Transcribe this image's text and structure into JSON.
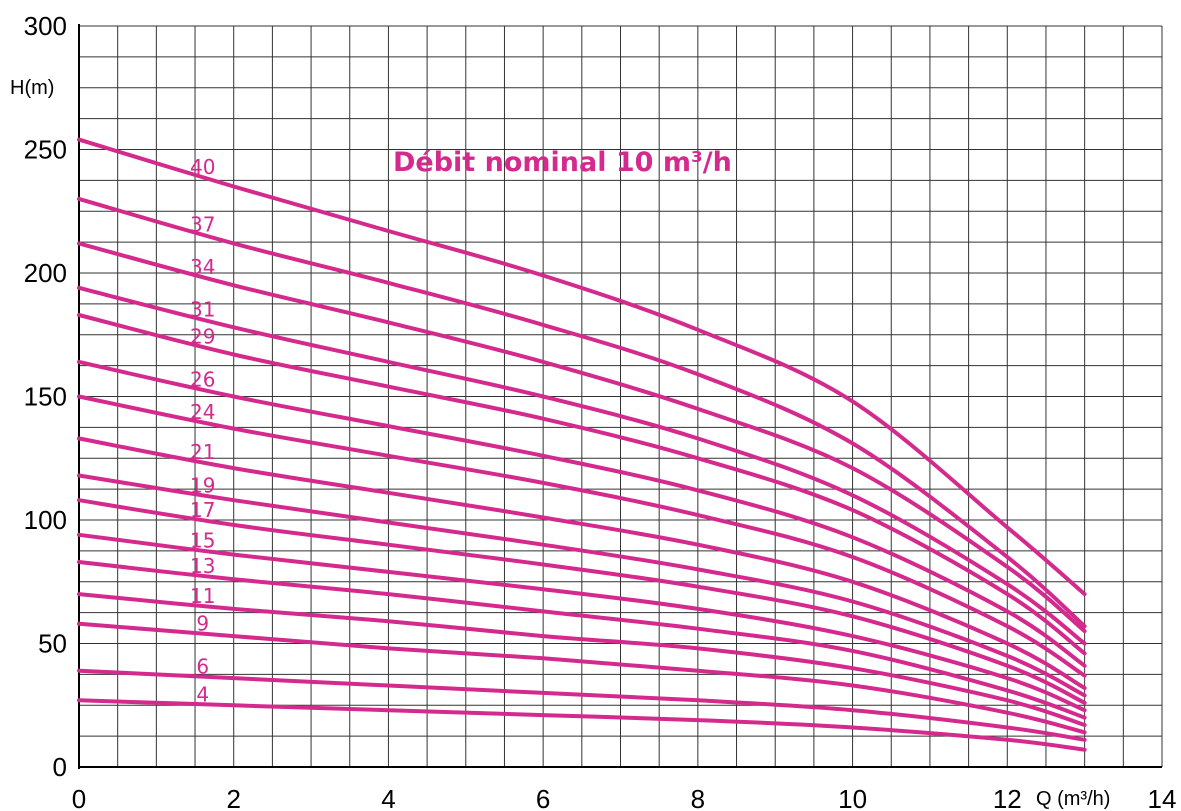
{
  "chart_data": {
    "type": "line",
    "title": "Débit nominal 10 m³/h",
    "xlabel": "Q (m³/h)",
    "ylabel": "H(m)",
    "xlim": [
      0,
      14
    ],
    "ylim": [
      0,
      300
    ],
    "x_ticks": [
      "0",
      "2",
      "4",
      "6",
      "8",
      "10",
      "12",
      "14"
    ],
    "y_ticks": [
      "0",
      "50",
      "100",
      "150",
      "200",
      "250",
      "300"
    ],
    "grid": true,
    "legend": "none (series labels printed on curves)",
    "colors": {
      "curve": "#d42a8e",
      "grid": "#333333",
      "axis": "#000000"
    },
    "x": [
      0,
      2,
      4,
      6,
      8,
      10,
      12,
      13
    ],
    "series": [
      {
        "name": "40",
        "values": [
          254,
          235,
          217,
          199,
          177,
          148,
          97,
          70
        ]
      },
      {
        "name": "37",
        "values": [
          230,
          212,
          196,
          179,
          159,
          131,
          85,
          57
        ]
      },
      {
        "name": "34",
        "values": [
          212,
          195,
          180,
          164,
          145,
          121,
          81,
          55
        ]
      },
      {
        "name": "31",
        "values": [
          194,
          178,
          164,
          150,
          133,
          110,
          74,
          50
        ]
      },
      {
        "name": "29",
        "values": [
          183,
          167,
          154,
          141,
          125,
          104,
          70,
          46
        ]
      },
      {
        "name": "26",
        "values": [
          164,
          150,
          138,
          126,
          112,
          93,
          63,
          41
        ]
      },
      {
        "name": "24",
        "values": [
          150,
          137,
          126,
          115,
          102,
          85,
          57,
          37
        ]
      },
      {
        "name": "21",
        "values": [
          133,
          121,
          111,
          101,
          90,
          75,
          50,
          32
        ]
      },
      {
        "name": "19",
        "values": [
          118,
          108,
          99,
          90,
          80,
          67,
          45,
          29
        ]
      },
      {
        "name": "17",
        "values": [
          108,
          98,
          90,
          82,
          73,
          61,
          41,
          26
        ]
      },
      {
        "name": "15",
        "values": [
          94,
          86,
          79,
          72,
          64,
          53,
          36,
          23
        ]
      },
      {
        "name": "13",
        "values": [
          83,
          76,
          70,
          63,
          56,
          47,
          31,
          20
        ]
      },
      {
        "name": "11",
        "values": [
          70,
          64,
          59,
          53,
          48,
          40,
          27,
          17
        ]
      },
      {
        "name": "9",
        "values": [
          58,
          53,
          48,
          44,
          39,
          33,
          22,
          14
        ]
      },
      {
        "name": "6",
        "values": [
          39,
          36,
          33,
          30,
          27,
          23,
          16,
          11
        ]
      },
      {
        "name": "4",
        "values": [
          27,
          25,
          23,
          21,
          19,
          16,
          11,
          7
        ]
      }
    ]
  }
}
